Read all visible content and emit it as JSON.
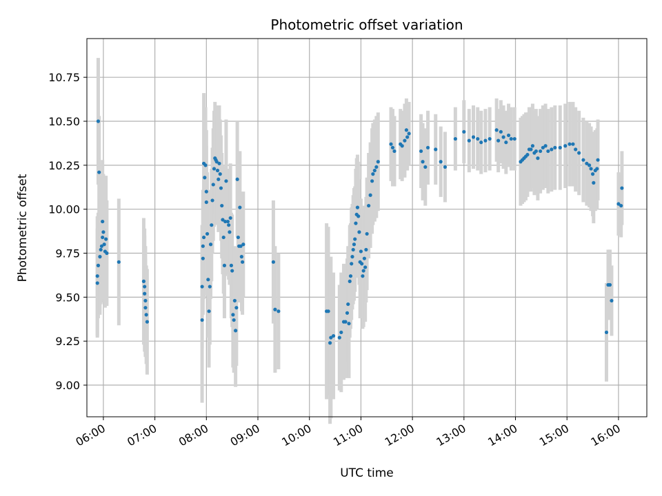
{
  "chart_data": {
    "type": "scatter",
    "title": "Photometric offset variation",
    "xlabel": "UTC time",
    "ylabel": "Photometric offset",
    "x_unit": "hours",
    "xlim": [
      5.68,
      16.55
    ],
    "ylim": [
      8.82,
      10.97
    ],
    "grid": true,
    "x_ticks": [
      "06:00",
      "07:00",
      "08:00",
      "09:00",
      "10:00",
      "11:00",
      "12:00",
      "13:00",
      "14:00",
      "15:00",
      "16:00"
    ],
    "y_ticks": [
      "9.00",
      "9.25",
      "9.50",
      "9.75",
      "10.00",
      "10.25",
      "10.50",
      "10.75"
    ],
    "colors": {
      "points": "#1f77b4",
      "errorbars": "#d3d3d3",
      "grid": "#b0b0b0"
    },
    "series": [
      {
        "points": [
          {
            "t": "05:53",
            "y": 9.62,
            "err": 0.34
          },
          {
            "t": "05:53",
            "y": 9.58,
            "err": 0.31
          },
          {
            "t": "05:54",
            "y": 10.5,
            "err": 0.36
          },
          {
            "t": "05:54",
            "y": 9.68,
            "err": 0.3
          },
          {
            "t": "05:55",
            "y": 10.21,
            "err": 0.32
          },
          {
            "t": "05:56",
            "y": 9.73,
            "err": 0.33
          },
          {
            "t": "05:57",
            "y": 9.77,
            "err": 0.31
          },
          {
            "t": "05:58",
            "y": 9.79,
            "err": 0.32
          },
          {
            "t": "05:59",
            "y": 9.84,
            "err": 0.35
          },
          {
            "t": "05:59",
            "y": 9.93,
            "err": 0.35
          },
          {
            "t": "06:00",
            "y": 9.87,
            "err": 0.33
          },
          {
            "t": "06:01",
            "y": 9.8,
            "err": 0.3
          },
          {
            "t": "06:02",
            "y": 9.76,
            "err": 0.32
          },
          {
            "t": "06:03",
            "y": 9.83,
            "err": 0.36
          },
          {
            "t": "06:04",
            "y": 9.75,
            "err": 0.3
          },
          {
            "t": "06:18",
            "y": 9.7,
            "err": 0.36
          },
          {
            "t": "06:47",
            "y": 9.59,
            "err": 0.36
          },
          {
            "t": "06:48",
            "y": 9.56,
            "err": 0.33
          },
          {
            "t": "06:48",
            "y": 9.52,
            "err": 0.33
          },
          {
            "t": "06:49",
            "y": 9.48,
            "err": 0.31
          },
          {
            "t": "06:49",
            "y": 9.44,
            "err": 0.28
          },
          {
            "t": "06:50",
            "y": 9.4,
            "err": 0.28
          },
          {
            "t": "06:51",
            "y": 9.36,
            "err": 0.3
          },
          {
            "t": "07:55",
            "y": 9.37,
            "err": 0.47
          },
          {
            "t": "07:55",
            "y": 9.56,
            "err": 0.35
          },
          {
            "t": "07:56",
            "y": 9.72,
            "err": 0.32
          },
          {
            "t": "07:56",
            "y": 9.79,
            "err": 0.32
          },
          {
            "t": "07:57",
            "y": 9.84,
            "err": 0.35
          },
          {
            "t": "07:57",
            "y": 10.26,
            "err": 0.4
          },
          {
            "t": "07:58",
            "y": 10.18,
            "err": 0.36
          },
          {
            "t": "07:59",
            "y": 10.25,
            "err": 0.33
          },
          {
            "t": "08:00",
            "y": 10.1,
            "err": 0.35
          },
          {
            "t": "08:00",
            "y": 10.04,
            "err": 0.32
          },
          {
            "t": "08:01",
            "y": 9.86,
            "err": 0.35
          },
          {
            "t": "08:02",
            "y": 9.6,
            "err": 0.33
          },
          {
            "t": "08:03",
            "y": 9.42,
            "err": 0.32
          },
          {
            "t": "08:04",
            "y": 9.56,
            "err": 0.33
          },
          {
            "t": "08:05",
            "y": 9.8,
            "err": 0.31
          },
          {
            "t": "08:06",
            "y": 9.91,
            "err": 0.32
          },
          {
            "t": "08:07",
            "y": 10.05,
            "err": 0.3
          },
          {
            "t": "08:08",
            "y": 10.14,
            "err": 0.32
          },
          {
            "t": "08:09",
            "y": 10.23,
            "err": 0.33
          },
          {
            "t": "08:10",
            "y": 10.29,
            "err": 0.32
          },
          {
            "t": "08:11",
            "y": 10.28,
            "err": 0.31
          },
          {
            "t": "08:12",
            "y": 10.27,
            "err": 0.32
          },
          {
            "t": "08:13",
            "y": 10.22,
            "err": 0.31
          },
          {
            "t": "08:14",
            "y": 10.17,
            "err": 0.3
          },
          {
            "t": "08:15",
            "y": 10.26,
            "err": 0.33
          },
          {
            "t": "08:16",
            "y": 10.2,
            "err": 0.31
          },
          {
            "t": "08:17",
            "y": 10.12,
            "err": 0.3
          },
          {
            "t": "08:18",
            "y": 10.02,
            "err": 0.3
          },
          {
            "t": "08:19",
            "y": 9.94,
            "err": 0.31
          },
          {
            "t": "08:20",
            "y": 9.84,
            "err": 0.32
          },
          {
            "t": "08:21",
            "y": 9.68,
            "err": 0.3
          },
          {
            "t": "08:22",
            "y": 9.93,
            "err": 0.31
          },
          {
            "t": "08:23",
            "y": 10.16,
            "err": 0.35
          },
          {
            "t": "08:25",
            "y": 9.93,
            "err": 0.3
          },
          {
            "t": "08:26",
            "y": 9.91,
            "err": 0.31
          },
          {
            "t": "08:27",
            "y": 9.87,
            "err": 0.3
          },
          {
            "t": "08:28",
            "y": 9.95,
            "err": 0.31
          },
          {
            "t": "08:29",
            "y": 9.68,
            "err": 0.3
          },
          {
            "t": "08:30",
            "y": 9.65,
            "err": 0.32
          },
          {
            "t": "08:31",
            "y": 9.4,
            "err": 0.3
          },
          {
            "t": "08:32",
            "y": 9.37,
            "err": 0.3
          },
          {
            "t": "08:33",
            "y": 9.48,
            "err": 0.31
          },
          {
            "t": "08:34",
            "y": 9.31,
            "err": 0.32
          },
          {
            "t": "08:35",
            "y": 9.44,
            "err": 0.33
          },
          {
            "t": "08:36",
            "y": 10.17,
            "err": 0.33
          },
          {
            "t": "08:37",
            "y": 9.84,
            "err": 0.31
          },
          {
            "t": "08:38",
            "y": 9.79,
            "err": 0.32
          },
          {
            "t": "08:39",
            "y": 10.01,
            "err": 0.32
          },
          {
            "t": "08:40",
            "y": 9.79,
            "err": 0.31
          },
          {
            "t": "08:41",
            "y": 9.73,
            "err": 0.31
          },
          {
            "t": "08:42",
            "y": 9.7,
            "err": 0.3
          },
          {
            "t": "08:43",
            "y": 9.8,
            "err": 0.3
          },
          {
            "t": "09:18",
            "y": 9.7,
            "err": 0.35
          },
          {
            "t": "09:20",
            "y": 9.43,
            "err": 0.36
          },
          {
            "t": "09:24",
            "y": 9.42,
            "err": 0.33
          },
          {
            "t": "10:20",
            "y": 9.42,
            "err": 0.5
          },
          {
            "t": "10:22",
            "y": 9.42,
            "err": 0.48
          },
          {
            "t": "10:24",
            "y": 9.24,
            "err": 0.46
          },
          {
            "t": "10:25",
            "y": 9.27,
            "err": 0.46
          },
          {
            "t": "10:28",
            "y": 9.28,
            "err": 0.36
          },
          {
            "t": "10:35",
            "y": 9.27,
            "err": 0.3
          },
          {
            "t": "10:37",
            "y": 9.3,
            "err": 0.34
          },
          {
            "t": "10:40",
            "y": 9.36,
            "err": 0.33
          },
          {
            "t": "10:42",
            "y": 9.36,
            "err": 0.32
          },
          {
            "t": "10:44",
            "y": 9.41,
            "err": 0.31
          },
          {
            "t": "10:45",
            "y": 9.46,
            "err": 0.33
          },
          {
            "t": "10:46",
            "y": 9.35,
            "err": 0.31
          },
          {
            "t": "10:47",
            "y": 9.59,
            "err": 0.32
          },
          {
            "t": "10:48",
            "y": 9.62,
            "err": 0.3
          },
          {
            "t": "10:49",
            "y": 9.69,
            "err": 0.32
          },
          {
            "t": "10:50",
            "y": 9.73,
            "err": 0.3
          },
          {
            "t": "10:51",
            "y": 9.77,
            "err": 0.31
          },
          {
            "t": "10:52",
            "y": 9.8,
            "err": 0.32
          },
          {
            "t": "10:53",
            "y": 9.83,
            "err": 0.3
          },
          {
            "t": "10:54",
            "y": 9.92,
            "err": 0.31
          },
          {
            "t": "10:55",
            "y": 9.97,
            "err": 0.32
          },
          {
            "t": "10:56",
            "y": 10.01,
            "err": 0.3
          },
          {
            "t": "10:57",
            "y": 9.96,
            "err": 0.31
          },
          {
            "t": "10:58",
            "y": 9.87,
            "err": 0.3
          },
          {
            "t": "10:59",
            "y": 9.7,
            "err": 0.32
          },
          {
            "t": "11:00",
            "y": 9.76,
            "err": 0.3
          },
          {
            "t": "11:01",
            "y": 9.69,
            "err": 0.31
          },
          {
            "t": "11:02",
            "y": 9.62,
            "err": 0.3
          },
          {
            "t": "11:03",
            "y": 9.65,
            "err": 0.32
          },
          {
            "t": "11:04",
            "y": 9.72,
            "err": 0.3
          },
          {
            "t": "11:05",
            "y": 9.67,
            "err": 0.31
          },
          {
            "t": "11:06",
            "y": 9.77,
            "err": 0.3
          },
          {
            "t": "11:07",
            "y": 9.86,
            "err": 0.32
          },
          {
            "t": "11:09",
            "y": 10.02,
            "err": 0.3
          },
          {
            "t": "11:11",
            "y": 10.08,
            "err": 0.3
          },
          {
            "t": "11:13",
            "y": 10.16,
            "err": 0.3
          },
          {
            "t": "11:14",
            "y": 10.2,
            "err": 0.29
          },
          {
            "t": "11:16",
            "y": 10.22,
            "err": 0.29
          },
          {
            "t": "11:18",
            "y": 10.24,
            "err": 0.29
          },
          {
            "t": "11:20",
            "y": 10.27,
            "err": 0.28
          },
          {
            "t": "11:35",
            "y": 10.37,
            "err": 0.21
          },
          {
            "t": "11:37",
            "y": 10.35,
            "err": 0.22
          },
          {
            "t": "11:39",
            "y": 10.33,
            "err": 0.2
          },
          {
            "t": "11:46",
            "y": 10.37,
            "err": 0.2
          },
          {
            "t": "11:48",
            "y": 10.36,
            "err": 0.2
          },
          {
            "t": "11:51",
            "y": 10.39,
            "err": 0.21
          },
          {
            "t": "11:53",
            "y": 10.45,
            "err": 0.18
          },
          {
            "t": "11:54",
            "y": 10.41,
            "err": 0.19
          },
          {
            "t": "11:56",
            "y": 10.43,
            "err": 0.18
          },
          {
            "t": "12:10",
            "y": 10.33,
            "err": 0.21
          },
          {
            "t": "12:12",
            "y": 10.27,
            "err": 0.22
          },
          {
            "t": "12:15",
            "y": 10.24,
            "err": 0.22
          },
          {
            "t": "12:18",
            "y": 10.35,
            "err": 0.21
          },
          {
            "t": "12:27",
            "y": 10.34,
            "err": 0.2
          },
          {
            "t": "12:33",
            "y": 10.27,
            "err": 0.2
          },
          {
            "t": "12:38",
            "y": 10.24,
            "err": 0.2
          },
          {
            "t": "12:50",
            "y": 10.4,
            "err": 0.18
          },
          {
            "t": "13:00",
            "y": 10.44,
            "err": 0.18
          },
          {
            "t": "13:06",
            "y": 10.39,
            "err": 0.18
          },
          {
            "t": "13:11",
            "y": 10.41,
            "err": 0.18
          },
          {
            "t": "13:16",
            "y": 10.4,
            "err": 0.18
          },
          {
            "t": "13:20",
            "y": 10.38,
            "err": 0.18
          },
          {
            "t": "13:25",
            "y": 10.39,
            "err": 0.18
          },
          {
            "t": "13:30",
            "y": 10.4,
            "err": 0.18
          },
          {
            "t": "13:38",
            "y": 10.45,
            "err": 0.18
          },
          {
            "t": "13:40",
            "y": 10.39,
            "err": 0.18
          },
          {
            "t": "13:43",
            "y": 10.44,
            "err": 0.18
          },
          {
            "t": "13:46",
            "y": 10.41,
            "err": 0.18
          },
          {
            "t": "13:49",
            "y": 10.38,
            "err": 0.18
          },
          {
            "t": "13:52",
            "y": 10.42,
            "err": 0.18
          },
          {
            "t": "13:55",
            "y": 10.4,
            "err": 0.18
          },
          {
            "t": "13:59",
            "y": 10.4,
            "err": 0.18
          },
          {
            "t": "14:06",
            "y": 10.27,
            "err": 0.25
          },
          {
            "t": "14:08",
            "y": 10.28,
            "err": 0.25
          },
          {
            "t": "14:10",
            "y": 10.29,
            "err": 0.25
          },
          {
            "t": "14:12",
            "y": 10.3,
            "err": 0.25
          },
          {
            "t": "14:14",
            "y": 10.31,
            "err": 0.24
          },
          {
            "t": "14:16",
            "y": 10.34,
            "err": 0.24
          },
          {
            "t": "14:18",
            "y": 10.34,
            "err": 0.24
          },
          {
            "t": "14:20",
            "y": 10.36,
            "err": 0.24
          },
          {
            "t": "14:22",
            "y": 10.32,
            "err": 0.24
          },
          {
            "t": "14:24",
            "y": 10.33,
            "err": 0.24
          },
          {
            "t": "14:26",
            "y": 10.29,
            "err": 0.24
          },
          {
            "t": "14:29",
            "y": 10.33,
            "err": 0.24
          },
          {
            "t": "14:32",
            "y": 10.35,
            "err": 0.24
          },
          {
            "t": "14:35",
            "y": 10.36,
            "err": 0.24
          },
          {
            "t": "14:38",
            "y": 10.33,
            "err": 0.24
          },
          {
            "t": "14:42",
            "y": 10.34,
            "err": 0.24
          },
          {
            "t": "14:46",
            "y": 10.35,
            "err": 0.24
          },
          {
            "t": "14:52",
            "y": 10.35,
            "err": 0.24
          },
          {
            "t": "14:58",
            "y": 10.36,
            "err": 0.24
          },
          {
            "t": "15:03",
            "y": 10.37,
            "err": 0.24
          },
          {
            "t": "15:07",
            "y": 10.37,
            "err": 0.24
          },
          {
            "t": "15:10",
            "y": 10.34,
            "err": 0.24
          },
          {
            "t": "15:14",
            "y": 10.32,
            "err": 0.24
          },
          {
            "t": "15:19",
            "y": 10.28,
            "err": 0.24
          },
          {
            "t": "15:23",
            "y": 10.26,
            "err": 0.24
          },
          {
            "t": "15:26",
            "y": 10.25,
            "err": 0.24
          },
          {
            "t": "15:28",
            "y": 10.23,
            "err": 0.24
          },
          {
            "t": "15:30",
            "y": 10.2,
            "err": 0.24
          },
          {
            "t": "15:31",
            "y": 10.15,
            "err": 0.23
          },
          {
            "t": "15:33",
            "y": 10.22,
            "err": 0.23
          },
          {
            "t": "15:35",
            "y": 10.23,
            "err": 0.23
          },
          {
            "t": "15:36",
            "y": 10.28,
            "err": 0.23
          },
          {
            "t": "15:46",
            "y": 9.3,
            "err": 0.28
          },
          {
            "t": "15:48",
            "y": 9.57,
            "err": 0.2
          },
          {
            "t": "15:50",
            "y": 9.57,
            "err": 0.2
          },
          {
            "t": "15:52",
            "y": 9.48,
            "err": 0.2
          },
          {
            "t": "16:00",
            "y": 10.03,
            "err": 0.18
          },
          {
            "t": "16:03",
            "y": 10.02,
            "err": 0.18
          },
          {
            "t": "16:04",
            "y": 10.12,
            "err": 0.21
          }
        ]
      }
    ]
  }
}
